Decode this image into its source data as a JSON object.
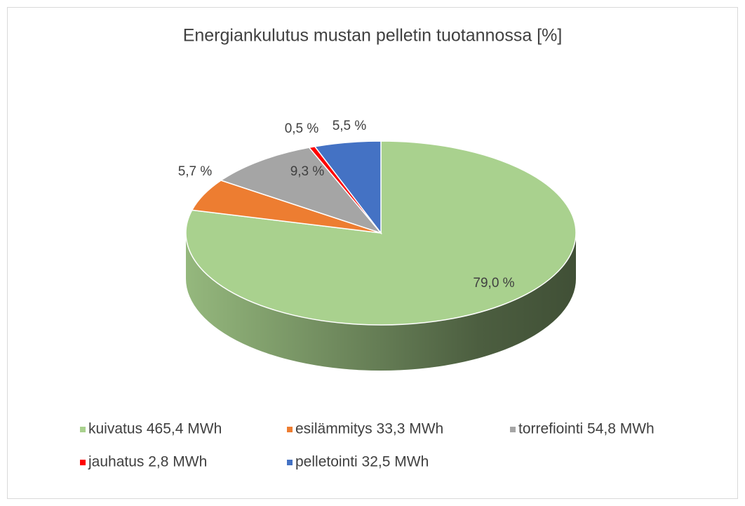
{
  "chart_data": {
    "type": "pie",
    "title": "Energiankulutus mustan pelletin tuotannossa [%]",
    "categories": [
      "kuivatus 465,4 MWh",
      "esilämmitys 33,3 MWh",
      "torrefiointi 54,8 MWh",
      "jauhatus 2,8 MWh",
      "pelletointi 32,5 MWh"
    ],
    "values": [
      79.0,
      5.7,
      9.3,
      0.5,
      5.5
    ],
    "value_labels": [
      "79,0 %",
      "5,7 %",
      "9,3 %",
      "0,5 %",
      "5,5 %"
    ],
    "colors": [
      "#a9d18e",
      "#ed7d31",
      "#a5a5a5",
      "#ff0000",
      "#4472c4"
    ],
    "legend": "bottom"
  }
}
